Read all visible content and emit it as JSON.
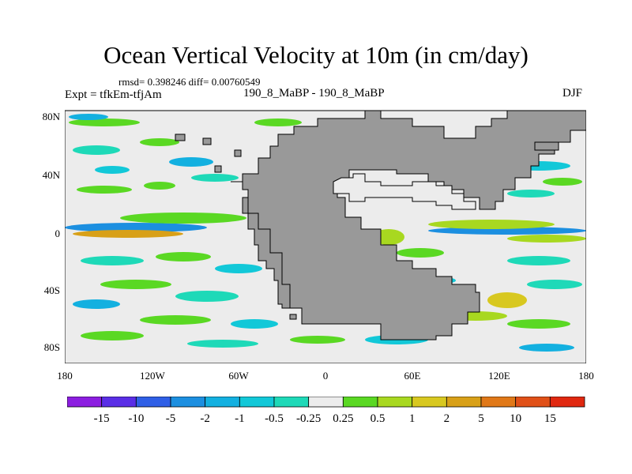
{
  "title": "Ocean Vertical Velocity at 10m (in cm/day)",
  "stats": "rmsd= 0.398246 diff= 0.00760549",
  "experiment": "Expt = tfkEm-tfjAm",
  "case_label": "190_8_MaBP - 190_8_MaBP",
  "season": "DJF",
  "y_ticks": [
    "80N",
    "40N",
    "0",
    "40S",
    "80S"
  ],
  "x_ticks": [
    "180",
    "120W",
    "60W",
    "0",
    "60E",
    "120E",
    "180"
  ],
  "colorbar": {
    "labels": [
      "-15",
      "-10",
      "-5",
      "-2",
      "-1",
      "-0.5",
      "-0.25",
      "0.25",
      "0.5",
      "1",
      "2",
      "5",
      "10",
      "15"
    ],
    "colors": [
      "#8c1ee0",
      "#5a2ee6",
      "#2f5fe6",
      "#1c8fe0",
      "#13b0e0",
      "#12c8d8",
      "#1ed9b8",
      "#ececec",
      "#5ad823",
      "#a8d820",
      "#d8c820",
      "#d8a018",
      "#e07818",
      "#e05018",
      "#e02810"
    ]
  },
  "colors": {
    "land": "#999999",
    "ocean_background": "#ececec"
  }
}
